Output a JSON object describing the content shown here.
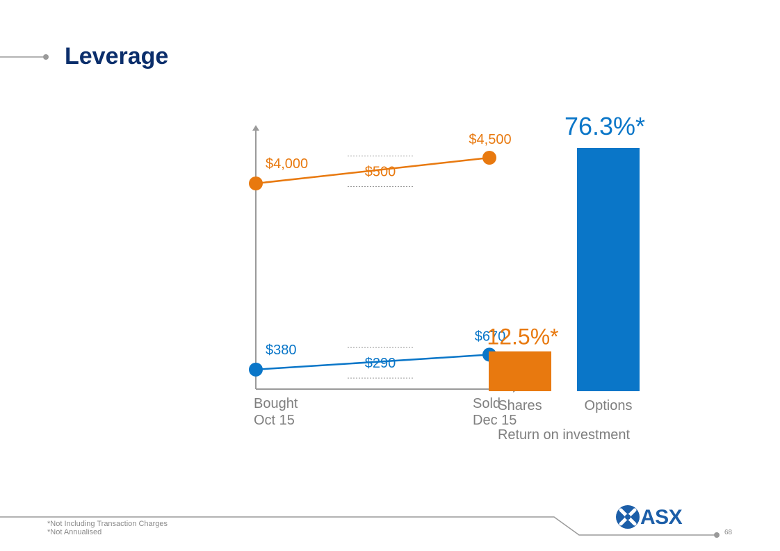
{
  "slide": {
    "title": "Leverage",
    "footnotes": [
      "*Not Including Transaction Charges",
      "*Not Annualised"
    ],
    "page_number": "68",
    "logo_text": "ASX"
  },
  "colors": {
    "orange": "#e8790f",
    "blue": "#0a76c8",
    "title": "#0b2e6b",
    "axis_gray": "#9a9a9a",
    "label_gray": "#7f7f7f"
  },
  "chart_data": [
    {
      "type": "line",
      "categories": [
        "Bought Oct 15",
        "Sold Dec 15"
      ],
      "category_lines": [
        [
          "Bought",
          "Oct 15"
        ],
        [
          "Sold",
          "Dec 15"
        ]
      ],
      "ylim": [
        0,
        5000
      ],
      "series": [
        {
          "name": "",
          "values": [
            4000,
            4500
          ],
          "labels": [
            "$4,000",
            "$4,500"
          ],
          "change_label": "$500",
          "color": "#e8790f"
        },
        {
          "name": "",
          "values": [
            380,
            670
          ],
          "labels": [
            "$380",
            "$670"
          ],
          "change_label": "$290",
          "color": "#0a76c8"
        }
      ]
    },
    {
      "type": "bar",
      "title": "",
      "xlabel": "Return on investment",
      "categories": [
        "Shares",
        "Options"
      ],
      "values": [
        12.5,
        76.3
      ],
      "value_labels": [
        "12.5%*",
        "76.3%*"
      ],
      "colors": [
        "#e8790f",
        "#0a76c8"
      ],
      "ylim": [
        0,
        80
      ]
    }
  ]
}
